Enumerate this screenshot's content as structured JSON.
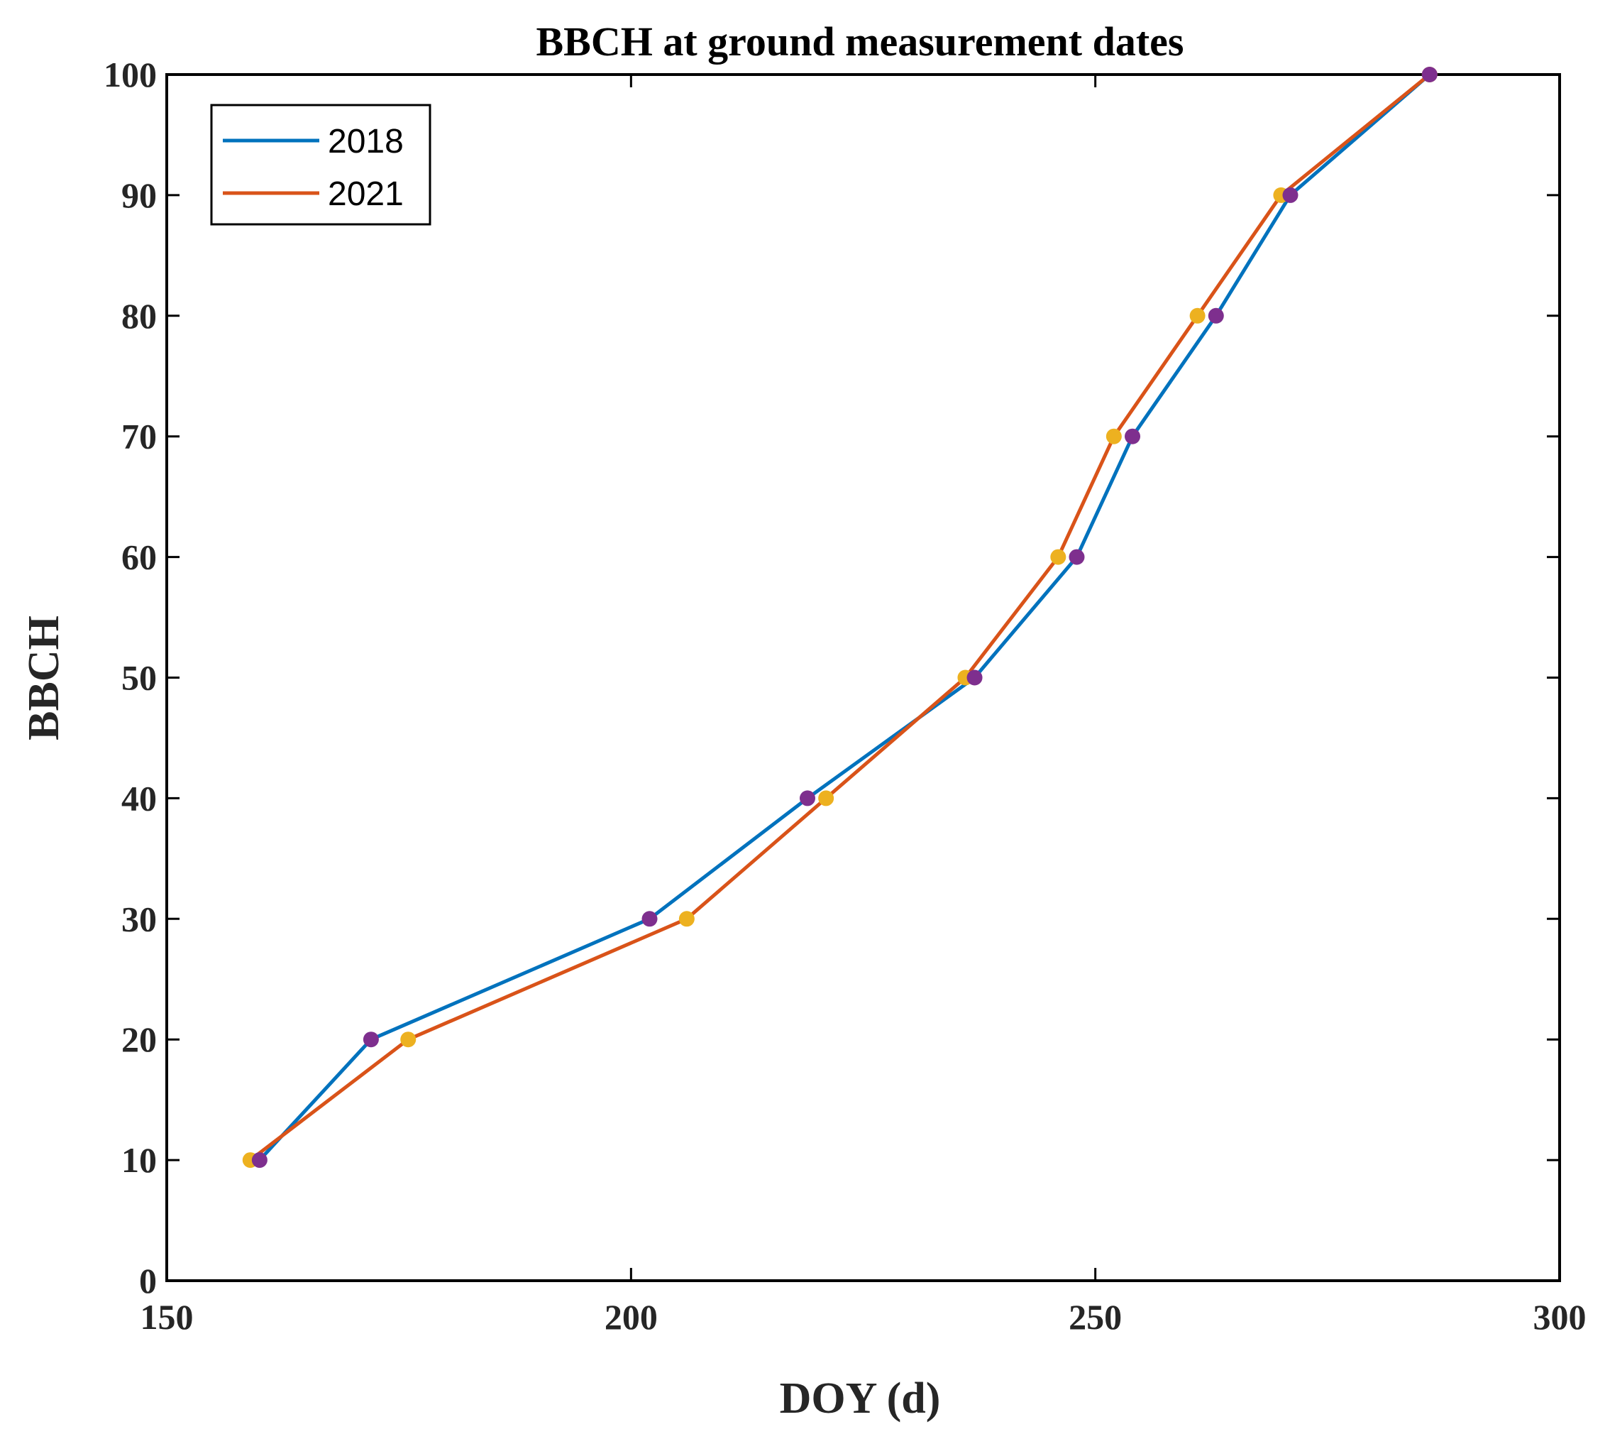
{
  "chart_data": {
    "type": "line",
    "title": "BBCH at ground measurement dates",
    "xlabel": "DOY (d)",
    "ylabel": "BBCH",
    "xlim": [
      150,
      300
    ],
    "ylim": [
      0,
      100
    ],
    "xticks": [
      150,
      200,
      250,
      300
    ],
    "yticks": [
      0,
      10,
      20,
      30,
      40,
      50,
      60,
      70,
      80,
      90,
      100
    ],
    "legend_position": "top-left",
    "series": [
      {
        "name": "2018",
        "color": "#0072BD",
        "marker_color": "#7E2F8E",
        "x": [
          160,
          172,
          202,
          219,
          237,
          248,
          254,
          263,
          271,
          286
        ],
        "y": [
          10,
          20,
          30,
          40,
          50,
          60,
          70,
          80,
          90,
          100
        ]
      },
      {
        "name": "2021",
        "color": "#D95319",
        "marker_color": "#EDB120",
        "x": [
          159,
          176,
          206,
          221,
          236,
          246,
          252,
          261,
          270,
          286
        ],
        "y": [
          10,
          20,
          30,
          40,
          50,
          60,
          70,
          80,
          90,
          100
        ]
      }
    ]
  }
}
